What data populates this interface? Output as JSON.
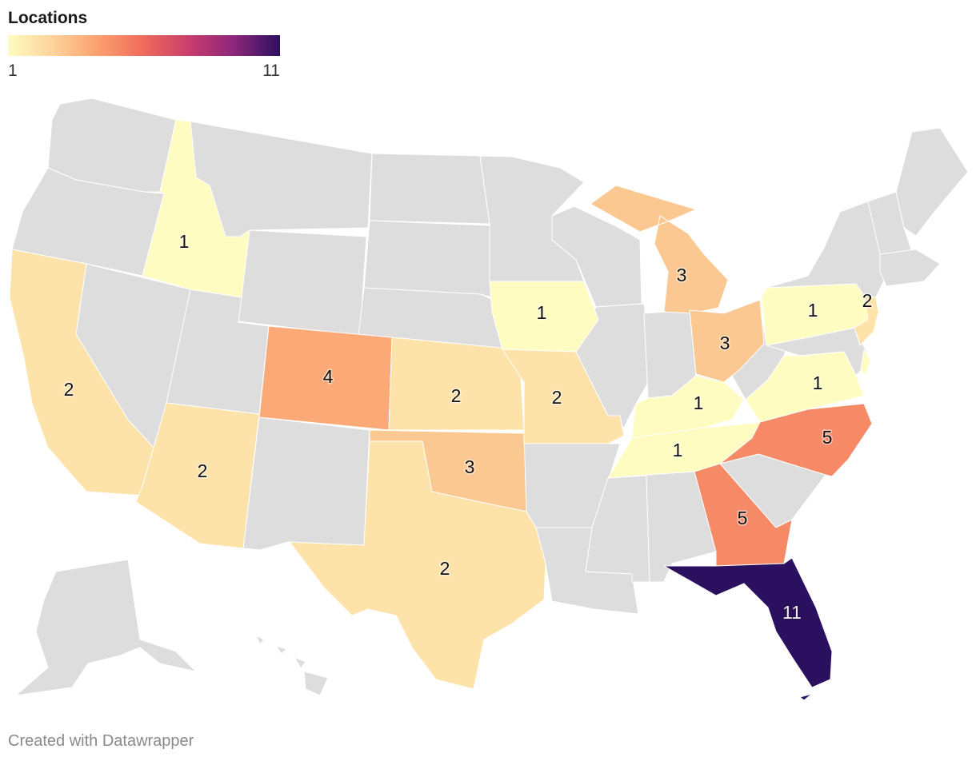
{
  "legend": {
    "title": "Locations",
    "min_label": "1",
    "max_label": "11",
    "min": 1,
    "max": 11,
    "gradient": [
      "#fefcc0",
      "#fcd29a",
      "#fb9f6e",
      "#ef6b5c",
      "#c83d6c",
      "#8c267c",
      "#2c1060"
    ]
  },
  "colors": {
    "no_data": "#dddddd",
    "border": "#ffffff",
    "label_dark": "#111111",
    "label_light": "#f2f2f2"
  },
  "chart_data": {
    "type": "choropleth",
    "title": "Locations",
    "regions": [
      {
        "state": "Idaho",
        "value": 1
      },
      {
        "state": "California",
        "value": 2
      },
      {
        "state": "Arizona",
        "value": 2
      },
      {
        "state": "Colorado",
        "value": 4
      },
      {
        "state": "Kansas",
        "value": 2
      },
      {
        "state": "Oklahoma",
        "value": 3
      },
      {
        "state": "Texas",
        "value": 2
      },
      {
        "state": "Iowa",
        "value": 1
      },
      {
        "state": "Missouri",
        "value": 2
      },
      {
        "state": "Michigan",
        "value": 3
      },
      {
        "state": "Ohio",
        "value": 3
      },
      {
        "state": "Kentucky",
        "value": 1
      },
      {
        "state": "Tennessee",
        "value": 1
      },
      {
        "state": "Pennsylvania",
        "value": 1
      },
      {
        "state": "New Jersey",
        "value": 2
      },
      {
        "state": "Virginia",
        "value": 1
      },
      {
        "state": "North Carolina",
        "value": 5
      },
      {
        "state": "Georgia",
        "value": 5
      },
      {
        "state": "Florida",
        "value": 11
      }
    ]
  },
  "footer": {
    "credit": "Created with Datawrapper"
  }
}
